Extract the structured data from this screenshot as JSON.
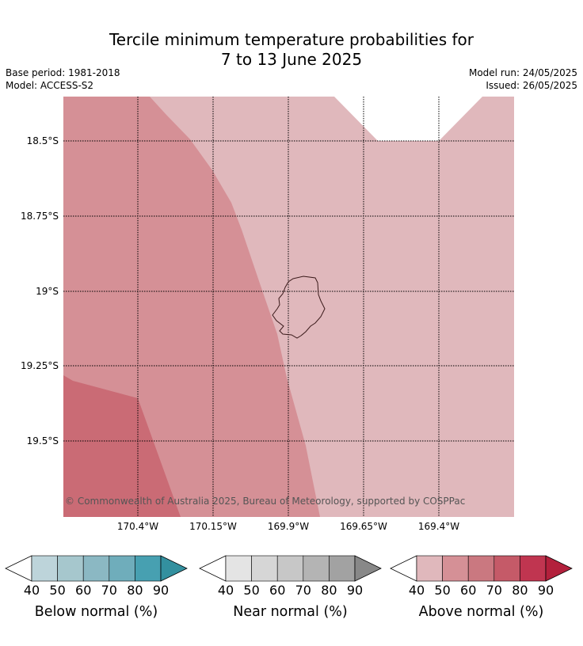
{
  "title_line1": "Tercile minimum temperature probabilities for",
  "title_line2": "7 to 13 June 2025",
  "base_period": "Base period: 1981-2018",
  "model": "Model: ACCESS-S2",
  "model_run": "Model run: 24/05/2025",
  "issued": "Issued: 26/05/2025",
  "copyright": "© Commonwealth of Australia 2025, Bureau of Meteorology, supported by COSPPac",
  "map": {
    "lat_labels": [
      "18.5°S",
      "18.75°S",
      "19°S",
      "19.25°S",
      "19.5°S"
    ],
    "lon_labels": [
      "170.4°W",
      "170.15°W",
      "169.9°W",
      "169.65°W",
      "169.4°W"
    ],
    "region_colors": {
      "above_40_50": "#e0b8bc",
      "above_50_60": "#d59096",
      "above_60_70": "#ca6b75",
      "below_40": "#ffffff"
    }
  },
  "colorbars": [
    {
      "title": "Below normal (%)",
      "ticks": [
        "40",
        "50",
        "60",
        "70",
        "80",
        "90"
      ],
      "colors": [
        "#bdd4da",
        "#a6c7cd",
        "#8bb8c3",
        "#6fadbb",
        "#47a0b1",
        "#33909f"
      ]
    },
    {
      "title": "Near normal (%)",
      "ticks": [
        "40",
        "50",
        "60",
        "70",
        "80",
        "90"
      ],
      "colors": [
        "#e4e4e4",
        "#d6d6d6",
        "#c7c7c7",
        "#b4b4b4",
        "#a2a2a2",
        "#888888"
      ]
    },
    {
      "title": "Above normal (%)",
      "ticks": [
        "40",
        "50",
        "60",
        "70",
        "80",
        "90"
      ],
      "colors": [
        "#e0b8bc",
        "#d59096",
        "#ca7880",
        "#c55a68",
        "#c03550",
        "#b3203c"
      ]
    }
  ]
}
